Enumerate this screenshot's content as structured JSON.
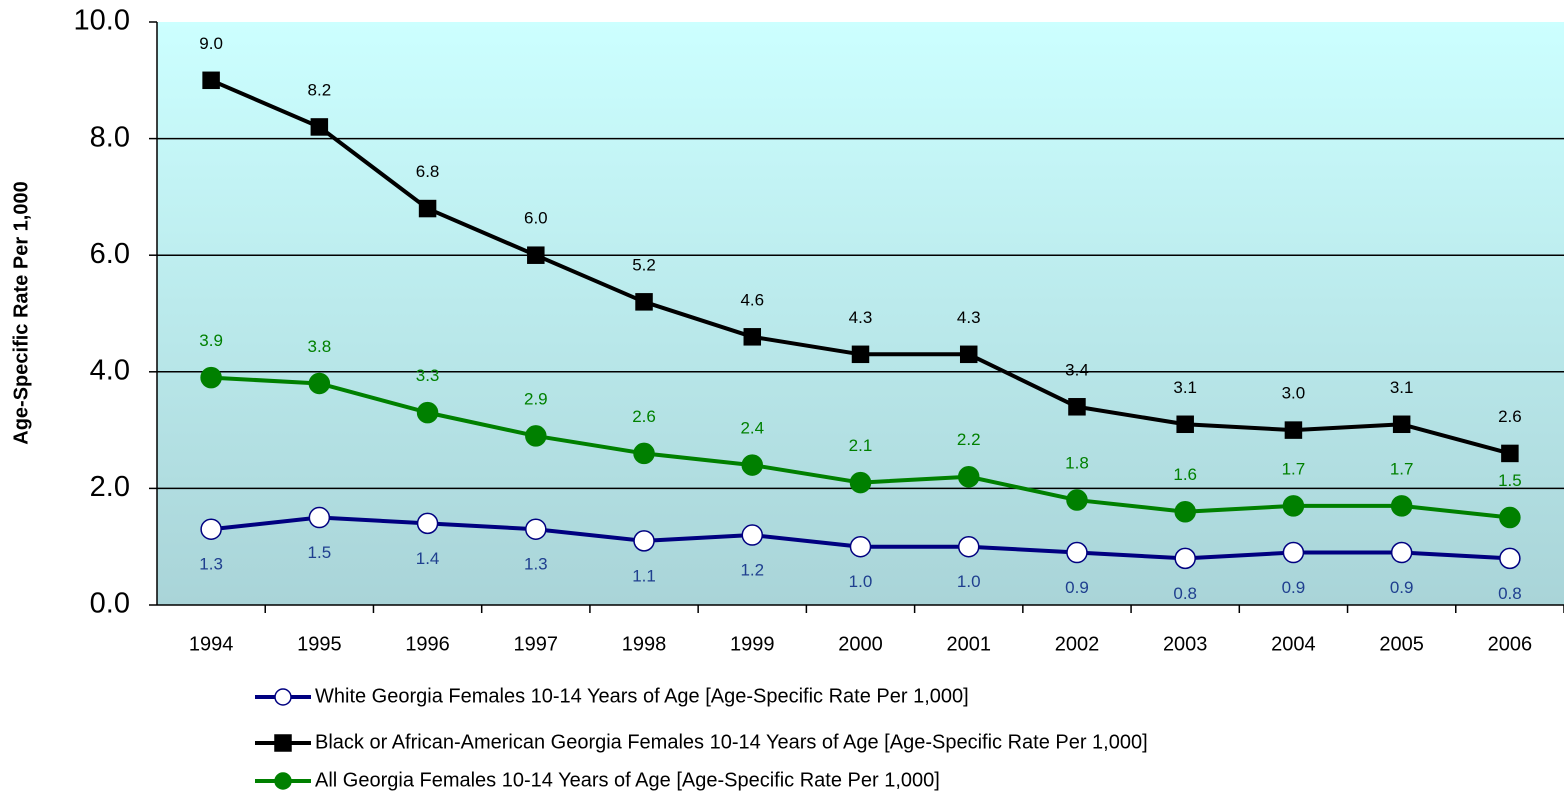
{
  "chart_data": {
    "type": "line",
    "y_label": "Age-Specific Rate Per 1,000",
    "categories": [
      "1994",
      "1995",
      "1996",
      "1997",
      "1998",
      "1999",
      "2000",
      "2001",
      "2002",
      "2003",
      "2004",
      "2005",
      "2006"
    ],
    "ylim": [
      0,
      10
    ],
    "yticks": [
      {
        "value": 0,
        "label": "0.0"
      },
      {
        "value": 2,
        "label": "2.0"
      },
      {
        "value": 4,
        "label": "4.0"
      },
      {
        "value": 6,
        "label": "6.0"
      },
      {
        "value": 8,
        "label": "8.0"
      },
      {
        "value": 10,
        "label": "10.0"
      }
    ],
    "grid": true,
    "legend": "bottom",
    "series": [
      {
        "name": "White Georgia Females 10-14 Years of Age [Age-Specific Rate Per 1,000]",
        "color": "#000080",
        "marker": "circle",
        "marker_fill": "#ffffff",
        "label_color": "#1f3f8f",
        "label_position": "below",
        "values": [
          1.3,
          1.5,
          1.4,
          1.3,
          1.1,
          1.2,
          1.0,
          1.0,
          0.9,
          0.8,
          0.9,
          0.9,
          0.8
        ],
        "value_labels": [
          "1.3",
          "1.5",
          "1.4",
          "1.3",
          "1.1",
          "1.2",
          "1.0",
          "1.0",
          "0.9",
          "0.8",
          "0.9",
          "0.9",
          "0.8"
        ]
      },
      {
        "name": "Black or African-American Georgia Females 10-14 Years of Age [Age-Specific Rate Per 1,000]",
        "color": "#000000",
        "marker": "square",
        "marker_fill": "#000000",
        "label_color": "#000000",
        "label_position": "above",
        "values": [
          9.0,
          8.2,
          6.8,
          6.0,
          5.2,
          4.6,
          4.3,
          4.3,
          3.4,
          3.1,
          3.0,
          3.1,
          2.6
        ],
        "value_labels": [
          "9.0",
          "8.2",
          "6.8",
          "6.0",
          "5.2",
          "4.6",
          "4.3",
          "4.3",
          "3.4",
          "3.1",
          "3.0",
          "3.1",
          "2.6"
        ]
      },
      {
        "name": "All Georgia Females 10-14 Years of Age [Age-Specific Rate Per 1,000]",
        "color": "#008000",
        "marker": "circle",
        "marker_fill": "#008000",
        "label_color": "#008000",
        "label_position": "above",
        "values": [
          3.9,
          3.8,
          3.3,
          2.9,
          2.6,
          2.4,
          2.1,
          2.2,
          1.8,
          1.6,
          1.7,
          1.7,
          1.5
        ],
        "value_labels": [
          "3.9",
          "3.8",
          "3.3",
          "2.9",
          "2.6",
          "2.4",
          "2.1",
          "2.2",
          "1.8",
          "1.6",
          "1.7",
          "1.7",
          "1.5"
        ]
      }
    ]
  }
}
